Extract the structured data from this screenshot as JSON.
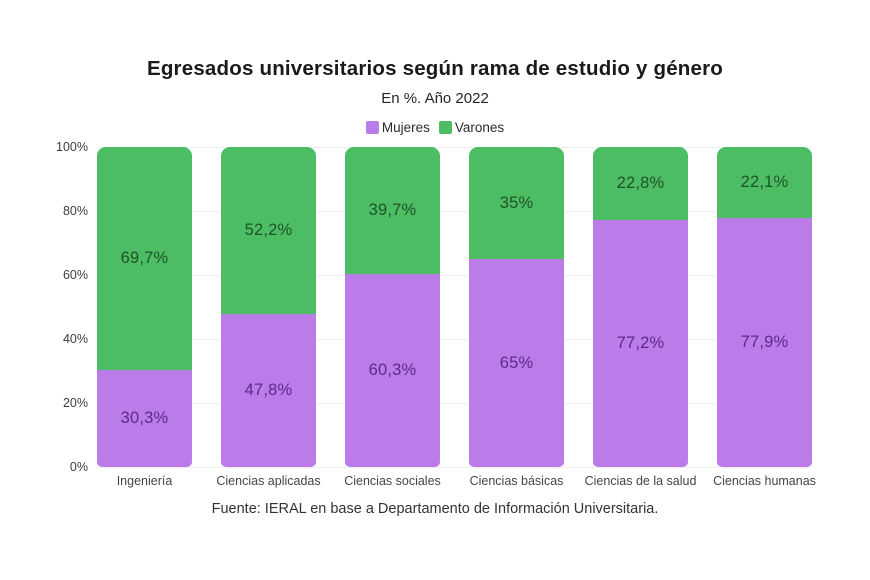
{
  "title": "Egresados universitarios según rama de estudio y género",
  "subtitle": "En %. Año 2022",
  "source": "Fuente: IERAL en base a Departamento de Información Universitaria.",
  "colors": {
    "mujeres": "#bb7be9",
    "varones": "#4dbd64",
    "mujeres_label_text": "#5c2b87",
    "varones_label_text": "#1d5329",
    "gridline": "#efefef"
  },
  "chart_data": {
    "type": "bar",
    "stacked": true,
    "unit": "%",
    "title": "Egresados universitarios según rama de estudio y género",
    "subtitle": "En %. Año 2022",
    "categories": [
      "Ingeniería",
      "Ciencias aplicadas",
      "Ciencias sociales",
      "Ciencias básicas",
      "Ciencias de la salud",
      "Ciencias humanas"
    ],
    "series": [
      {
        "name": "Mujeres",
        "color": "#bb7be9",
        "label_color": "#5c2b87",
        "values": [
          30.3,
          47.8,
          60.3,
          65,
          77.2,
          77.9
        ],
        "labels": [
          "30,3%",
          "47,8%",
          "60,3%",
          "65%",
          "77,2%",
          "77,9%"
        ]
      },
      {
        "name": "Varones",
        "color": "#4dbd64",
        "label_color": "#1d5329",
        "values": [
          69.7,
          52.2,
          39.7,
          35,
          22.8,
          22.1
        ],
        "labels": [
          "69,7%",
          "52,2%",
          "39,7%",
          "35%",
          "22,8%",
          "22,1%"
        ]
      }
    ],
    "yticks": [
      "0%",
      "20%",
      "40%",
      "60%",
      "80%",
      "100%"
    ],
    "ylim": [
      0,
      100
    ],
    "grid": true,
    "legend_position": "top-center"
  }
}
